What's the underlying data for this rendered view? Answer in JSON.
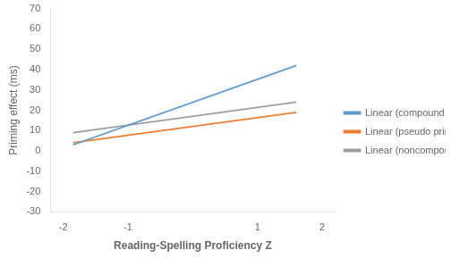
{
  "chart_data": {
    "type": "line",
    "x_label": "Reading-Spelling Proficiency Z",
    "y_label": "Priming effect (ms)",
    "x": [
      -1.85,
      1.6
    ],
    "series": [
      {
        "name": "Linear (compound priming)",
        "color": "#5B9BD5",
        "values": [
          3,
          42
        ]
      },
      {
        "name": "Linear (pseudo priming)",
        "color": "#ED7D31",
        "values": [
          4,
          19
        ]
      },
      {
        "name": "Linear (noncompound priming)",
        "color": "#9E9E9E",
        "values": [
          9,
          24
        ]
      }
    ],
    "xlim": [
      -2.2,
      2.2
    ],
    "xticks": [
      -2,
      -1,
      1,
      2
    ],
    "ylim": [
      -30,
      70
    ],
    "yticks": [
      -30,
      -20,
      -10,
      0,
      10,
      20,
      30,
      40,
      50,
      60,
      70
    ],
    "grid": false,
    "legend": "right",
    "marker": "none"
  }
}
